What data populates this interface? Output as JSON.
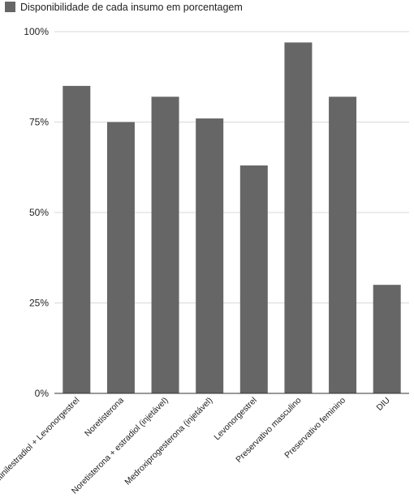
{
  "chart_data": {
    "type": "bar",
    "legend": {
      "label": "Disponibilidade de cada insumo em porcentagem",
      "position": "top-left"
    },
    "categories": [
      "Etinilestradiol + Levonorgestrel",
      "Noretisterona",
      "Noretisterona + estradiol (injetável)",
      "Medroxiprogesterona (injetável)",
      "Levonorgestrel",
      "Preservativo masculino",
      "Preservativo feminino",
      "DIU"
    ],
    "series": [
      {
        "name": "Disponibilidade de cada insumo em porcentagem",
        "values": [
          85,
          75,
          82,
          76,
          63,
          97,
          82,
          30
        ]
      }
    ],
    "yticks": [
      "0%",
      "25%",
      "50%",
      "75%",
      "100%"
    ],
    "ylim": [
      0,
      100
    ],
    "grid": true,
    "colors": {
      "bar": "#666666",
      "grid": "#d9d9d9",
      "axis": "#333333"
    }
  }
}
